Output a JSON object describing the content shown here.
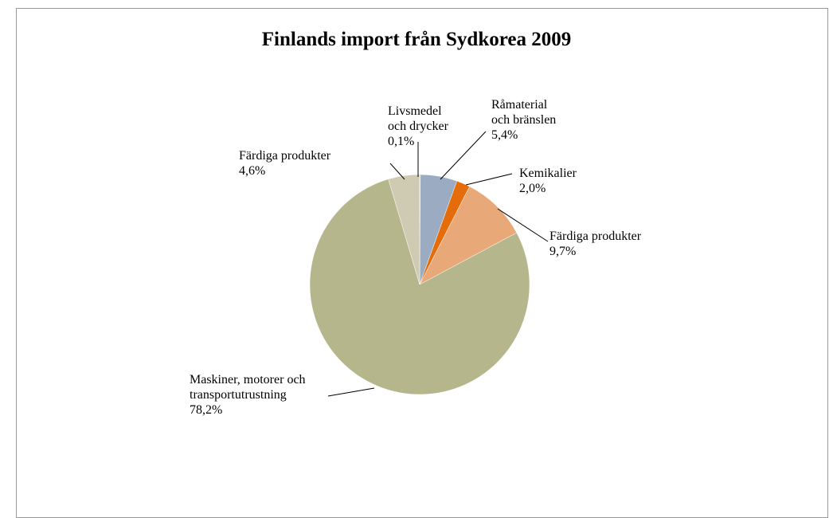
{
  "chart_data": {
    "type": "pie",
    "title": "Finlands import från Sydkorea 2009",
    "categories": [
      "Livsmedel\noch drycker",
      "Råmaterial\noch bränslen",
      "Kemikalier",
      "Färdiga produkter",
      "Maskiner, motorer och\ntransportutrustning",
      "Färdiga produkter"
    ],
    "values": [
      0.1,
      5.4,
      2.0,
      9.7,
      78.2,
      4.6
    ],
    "value_labels": [
      "0,1%",
      "5,4%",
      "2,0%",
      "9,7%",
      "78,2%",
      "4,6%"
    ],
    "colors": [
      "#7f95b3",
      "#9aabc2",
      "#e46c0a",
      "#e8a878",
      "#b5b68c",
      "#cfcbb3"
    ]
  }
}
